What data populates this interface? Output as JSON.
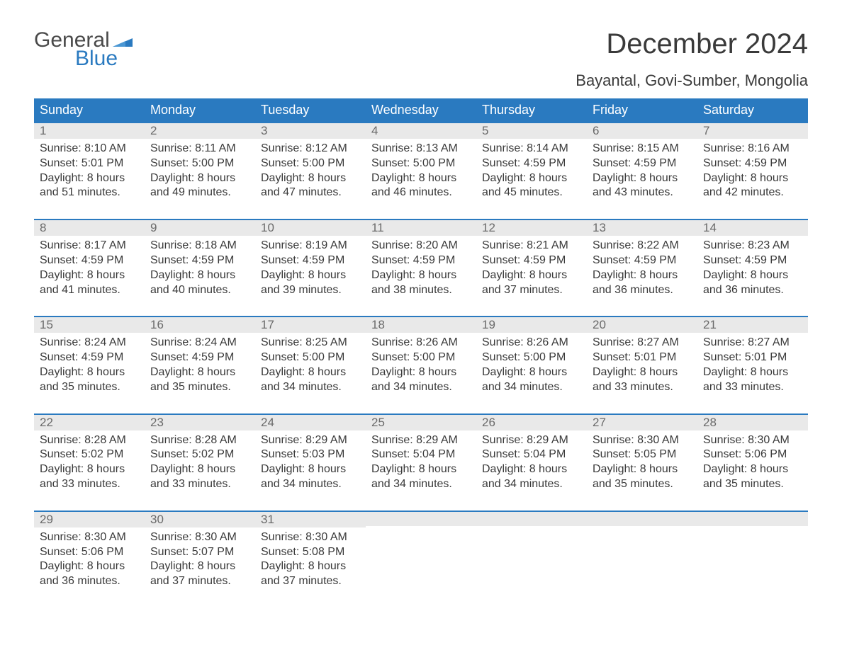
{
  "logo": {
    "text1": "General",
    "text2": "Blue",
    "flag_color": "#2a7ac0"
  },
  "title": "December 2024",
  "location": "Bayantal, Govi-Sumber, Mongolia",
  "colors": {
    "header_bg": "#2a7ac0",
    "header_text": "#ffffff",
    "daynum_bg": "#e9e9e9",
    "week_border": "#2a7ac0",
    "body_text": "#3a3a3a"
  },
  "day_names": [
    "Sunday",
    "Monday",
    "Tuesday",
    "Wednesday",
    "Thursday",
    "Friday",
    "Saturday"
  ],
  "weeks": [
    [
      {
        "n": "1",
        "sr": "Sunrise: 8:10 AM",
        "ss": "Sunset: 5:01 PM",
        "dl": "Daylight: 8 hours and 51 minutes."
      },
      {
        "n": "2",
        "sr": "Sunrise: 8:11 AM",
        "ss": "Sunset: 5:00 PM",
        "dl": "Daylight: 8 hours and 49 minutes."
      },
      {
        "n": "3",
        "sr": "Sunrise: 8:12 AM",
        "ss": "Sunset: 5:00 PM",
        "dl": "Daylight: 8 hours and 47 minutes."
      },
      {
        "n": "4",
        "sr": "Sunrise: 8:13 AM",
        "ss": "Sunset: 5:00 PM",
        "dl": "Daylight: 8 hours and 46 minutes."
      },
      {
        "n": "5",
        "sr": "Sunrise: 8:14 AM",
        "ss": "Sunset: 4:59 PM",
        "dl": "Daylight: 8 hours and 45 minutes."
      },
      {
        "n": "6",
        "sr": "Sunrise: 8:15 AM",
        "ss": "Sunset: 4:59 PM",
        "dl": "Daylight: 8 hours and 43 minutes."
      },
      {
        "n": "7",
        "sr": "Sunrise: 8:16 AM",
        "ss": "Sunset: 4:59 PM",
        "dl": "Daylight: 8 hours and 42 minutes."
      }
    ],
    [
      {
        "n": "8",
        "sr": "Sunrise: 8:17 AM",
        "ss": "Sunset: 4:59 PM",
        "dl": "Daylight: 8 hours and 41 minutes."
      },
      {
        "n": "9",
        "sr": "Sunrise: 8:18 AM",
        "ss": "Sunset: 4:59 PM",
        "dl": "Daylight: 8 hours and 40 minutes."
      },
      {
        "n": "10",
        "sr": "Sunrise: 8:19 AM",
        "ss": "Sunset: 4:59 PM",
        "dl": "Daylight: 8 hours and 39 minutes."
      },
      {
        "n": "11",
        "sr": "Sunrise: 8:20 AM",
        "ss": "Sunset: 4:59 PM",
        "dl": "Daylight: 8 hours and 38 minutes."
      },
      {
        "n": "12",
        "sr": "Sunrise: 8:21 AM",
        "ss": "Sunset: 4:59 PM",
        "dl": "Daylight: 8 hours and 37 minutes."
      },
      {
        "n": "13",
        "sr": "Sunrise: 8:22 AM",
        "ss": "Sunset: 4:59 PM",
        "dl": "Daylight: 8 hours and 36 minutes."
      },
      {
        "n": "14",
        "sr": "Sunrise: 8:23 AM",
        "ss": "Sunset: 4:59 PM",
        "dl": "Daylight: 8 hours and 36 minutes."
      }
    ],
    [
      {
        "n": "15",
        "sr": "Sunrise: 8:24 AM",
        "ss": "Sunset: 4:59 PM",
        "dl": "Daylight: 8 hours and 35 minutes."
      },
      {
        "n": "16",
        "sr": "Sunrise: 8:24 AM",
        "ss": "Sunset: 4:59 PM",
        "dl": "Daylight: 8 hours and 35 minutes."
      },
      {
        "n": "17",
        "sr": "Sunrise: 8:25 AM",
        "ss": "Sunset: 5:00 PM",
        "dl": "Daylight: 8 hours and 34 minutes."
      },
      {
        "n": "18",
        "sr": "Sunrise: 8:26 AM",
        "ss": "Sunset: 5:00 PM",
        "dl": "Daylight: 8 hours and 34 minutes."
      },
      {
        "n": "19",
        "sr": "Sunrise: 8:26 AM",
        "ss": "Sunset: 5:00 PM",
        "dl": "Daylight: 8 hours and 34 minutes."
      },
      {
        "n": "20",
        "sr": "Sunrise: 8:27 AM",
        "ss": "Sunset: 5:01 PM",
        "dl": "Daylight: 8 hours and 33 minutes."
      },
      {
        "n": "21",
        "sr": "Sunrise: 8:27 AM",
        "ss": "Sunset: 5:01 PM",
        "dl": "Daylight: 8 hours and 33 minutes."
      }
    ],
    [
      {
        "n": "22",
        "sr": "Sunrise: 8:28 AM",
        "ss": "Sunset: 5:02 PM",
        "dl": "Daylight: 8 hours and 33 minutes."
      },
      {
        "n": "23",
        "sr": "Sunrise: 8:28 AM",
        "ss": "Sunset: 5:02 PM",
        "dl": "Daylight: 8 hours and 33 minutes."
      },
      {
        "n": "24",
        "sr": "Sunrise: 8:29 AM",
        "ss": "Sunset: 5:03 PM",
        "dl": "Daylight: 8 hours and 34 minutes."
      },
      {
        "n": "25",
        "sr": "Sunrise: 8:29 AM",
        "ss": "Sunset: 5:04 PM",
        "dl": "Daylight: 8 hours and 34 minutes."
      },
      {
        "n": "26",
        "sr": "Sunrise: 8:29 AM",
        "ss": "Sunset: 5:04 PM",
        "dl": "Daylight: 8 hours and 34 minutes."
      },
      {
        "n": "27",
        "sr": "Sunrise: 8:30 AM",
        "ss": "Sunset: 5:05 PM",
        "dl": "Daylight: 8 hours and 35 minutes."
      },
      {
        "n": "28",
        "sr": "Sunrise: 8:30 AM",
        "ss": "Sunset: 5:06 PM",
        "dl": "Daylight: 8 hours and 35 minutes."
      }
    ],
    [
      {
        "n": "29",
        "sr": "Sunrise: 8:30 AM",
        "ss": "Sunset: 5:06 PM",
        "dl": "Daylight: 8 hours and 36 minutes."
      },
      {
        "n": "30",
        "sr": "Sunrise: 8:30 AM",
        "ss": "Sunset: 5:07 PM",
        "dl": "Daylight: 8 hours and 37 minutes."
      },
      {
        "n": "31",
        "sr": "Sunrise: 8:30 AM",
        "ss": "Sunset: 5:08 PM",
        "dl": "Daylight: 8 hours and 37 minutes."
      },
      null,
      null,
      null,
      null
    ]
  ]
}
